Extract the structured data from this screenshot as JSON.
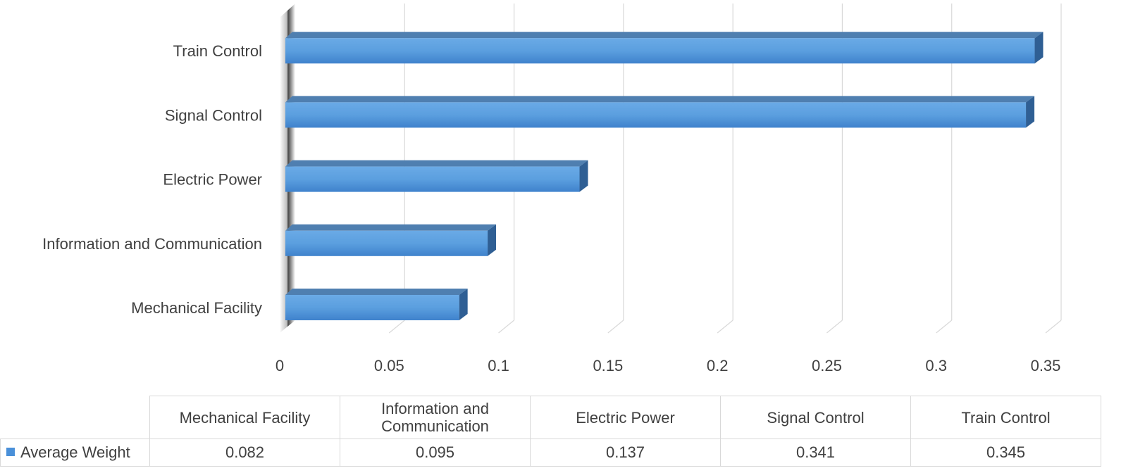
{
  "chart_data": {
    "type": "bar",
    "orientation": "horizontal",
    "style": "3d",
    "categories": [
      "Mechanical Facility",
      "Information and Communication",
      "Electric Power",
      "Signal Control",
      "Train Control"
    ],
    "series": [
      {
        "name": "Average Weight",
        "values": [
          0.082,
          0.095,
          0.137,
          0.341,
          0.345
        ],
        "color": "#4a90d9"
      }
    ],
    "x_ticks": [
      "0",
      "0.05",
      "0.1",
      "0.15",
      "0.2",
      "0.25",
      "0.3",
      "0.35"
    ],
    "xlim": [
      0,
      0.35
    ],
    "grid": true,
    "legend": "data-table-below",
    "data_table": {
      "headers": [
        "Mechanical Facility",
        "Information and Communication",
        "Electric Power",
        "Signal Control",
        "Train Control"
      ],
      "series_label": "Average Weight",
      "values": [
        "0.082",
        "0.095",
        "0.137",
        "0.341",
        "0.345"
      ]
    }
  }
}
